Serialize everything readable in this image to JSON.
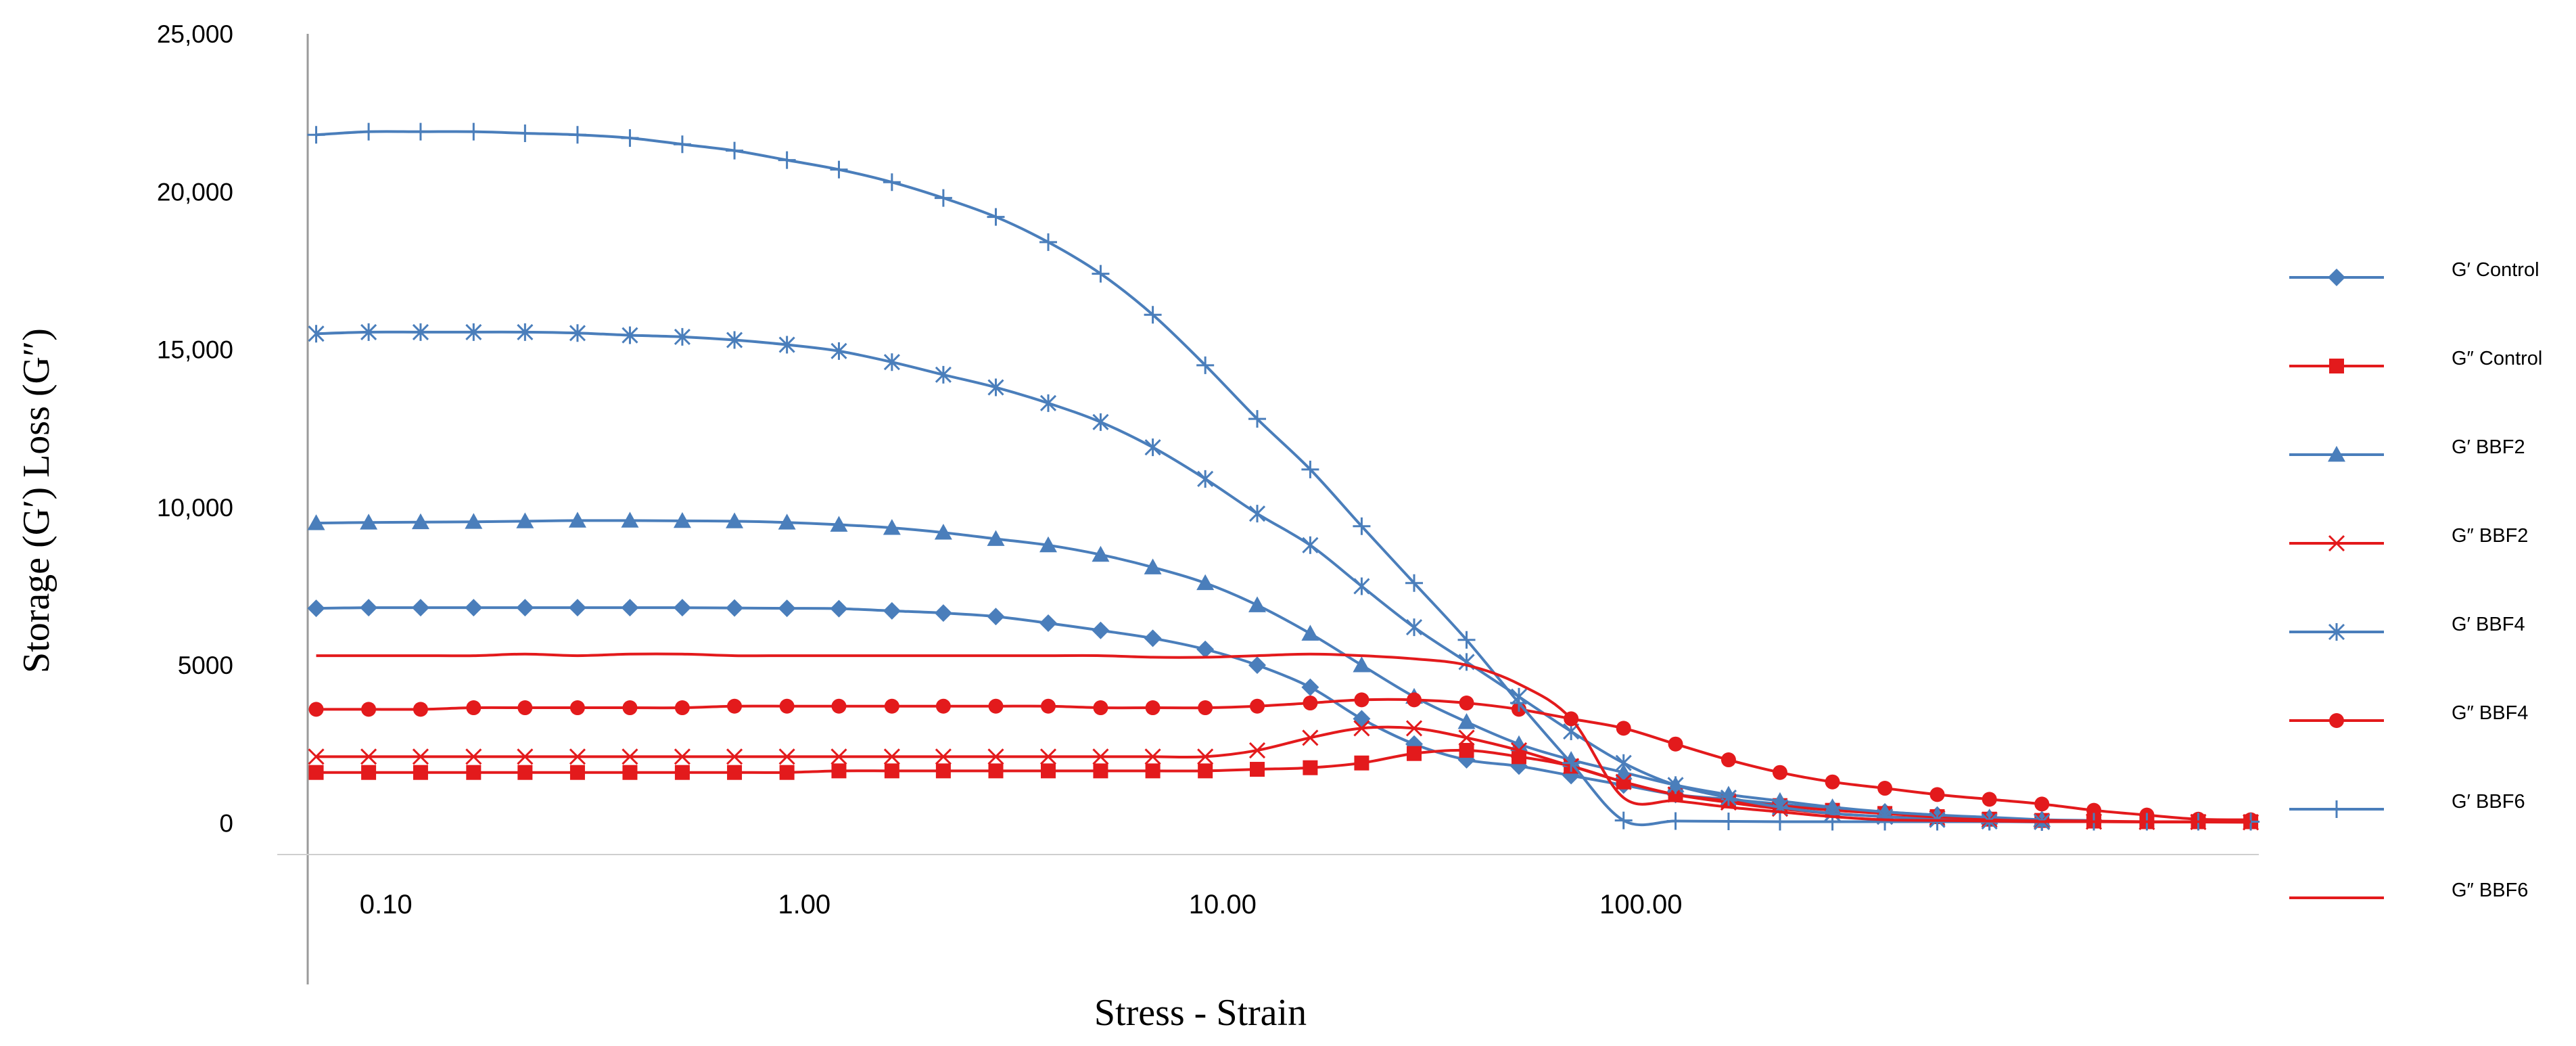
{
  "chart_data": {
    "type": "line",
    "title": "",
    "xlabel": "Stress - Strain",
    "ylabel": "Storage (G′) Loss (G″)",
    "x_scale": "log",
    "xlim": [
      0.065,
      3000
    ],
    "ylim": [
      -1000,
      25000
    ],
    "y_ticks": [
      {
        "value": 25000,
        "label": "25,000"
      },
      {
        "value": 20000,
        "label": "20,000"
      },
      {
        "value": 15000,
        "label": "15,000"
      },
      {
        "value": 10000,
        "label": "10,000"
      },
      {
        "value": 5000,
        "label": "5000"
      },
      {
        "value": 0,
        "label": "0"
      }
    ],
    "x_ticks": [
      {
        "value": 0.1,
        "label": "0.10"
      },
      {
        "value": 1,
        "label": "1.00"
      },
      {
        "value": 10,
        "label": "10.00"
      },
      {
        "value": 100,
        "label": "100.00"
      }
    ],
    "grid": false,
    "legend_position": "right",
    "x": [
      0.0681,
      0.0909,
      0.121,
      0.162,
      0.215,
      0.287,
      0.383,
      0.511,
      0.681,
      0.909,
      1.21,
      1.62,
      2.15,
      2.87,
      3.83,
      5.11,
      6.81,
      9.09,
      12.1,
      16.2,
      21.5,
      28.7,
      38.3,
      51.1,
      68.1,
      90.9,
      121,
      162,
      215,
      287,
      383,
      511,
      681,
      909,
      1210,
      1620,
      2150,
      2870
    ],
    "series": [
      {
        "name": "G′ Control",
        "color": "#4A7EBB",
        "marker": "diamond",
        "values": [
          6800,
          6820,
          6820,
          6820,
          6820,
          6820,
          6820,
          6820,
          6810,
          6800,
          6790,
          6720,
          6650,
          6540,
          6330,
          6100,
          5850,
          5500,
          5000,
          4300,
          3300,
          2500,
          2000,
          1800,
          1500,
          1200,
          900,
          750,
          600,
          450,
          350,
          250,
          150,
          100,
          80,
          null,
          null,
          null
        ]
      },
      {
        "name": "G″ Control",
        "color": "#E31A1C",
        "marker": "square",
        "values": [
          1600,
          1600,
          1600,
          1600,
          1600,
          1600,
          1600,
          1600,
          1600,
          1600,
          1650,
          1650,
          1650,
          1650,
          1650,
          1650,
          1650,
          1650,
          1700,
          1750,
          1900,
          2200,
          2300,
          2100,
          1800,
          1300,
          900,
          700,
          550,
          400,
          300,
          200,
          120,
          80,
          60,
          40,
          40,
          40
        ]
      },
      {
        "name": "G′ BBF2",
        "color": "#4A7EBB",
        "marker": "triangle",
        "values": [
          9500,
          9520,
          9530,
          9540,
          9560,
          9580,
          9580,
          9570,
          9560,
          9520,
          9450,
          9350,
          9200,
          9000,
          8800,
          8500,
          8100,
          7600,
          6900,
          6000,
          5000,
          4000,
          3200,
          2500,
          2000,
          1600,
          1200,
          900,
          700,
          500,
          350,
          250,
          180,
          100,
          null,
          null,
          null,
          null
        ]
      },
      {
        "name": "G″ BBF2",
        "color": "#E31A1C",
        "marker": "x",
        "values": [
          2100,
          2100,
          2100,
          2100,
          2100,
          2100,
          2100,
          2100,
          2100,
          2100,
          2100,
          2100,
          2100,
          2100,
          2100,
          2100,
          2100,
          2100,
          2300,
          2700,
          3000,
          3000,
          2700,
          2300,
          1800,
          1300,
          900,
          650,
          450,
          300,
          200,
          150,
          100,
          60,
          40,
          30,
          30,
          20
        ]
      },
      {
        "name": "G′ BBF4",
        "color": "#4A7EBB",
        "marker": "asterisk",
        "values": [
          15500,
          15550,
          15550,
          15550,
          15550,
          15520,
          15450,
          15400,
          15300,
          15150,
          14950,
          14600,
          14200,
          13800,
          13300,
          12700,
          11900,
          10900,
          9800,
          8800,
          7500,
          6200,
          5100,
          4000,
          2900,
          1900,
          1200,
          800,
          500,
          300,
          200,
          100,
          50,
          30,
          null,
          null,
          null,
          null
        ]
      },
      {
        "name": "G″ BBF4",
        "color": "#E31A1C",
        "marker": "circle",
        "values": [
          3600,
          3600,
          3600,
          3650,
          3650,
          3650,
          3650,
          3650,
          3700,
          3700,
          3700,
          3700,
          3700,
          3700,
          3700,
          3650,
          3650,
          3650,
          3700,
          3800,
          3900,
          3900,
          3800,
          3600,
          3300,
          3000,
          2500,
          2000,
          1600,
          1300,
          1100,
          900,
          750,
          600,
          400,
          250,
          120,
          100
        ]
      },
      {
        "name": "G′ BBF6",
        "color": "#4A7EBB",
        "marker": "plus",
        "values": [
          21800,
          21900,
          21900,
          21900,
          21850,
          21800,
          21700,
          21500,
          21300,
          21000,
          20700,
          20300,
          19800,
          19200,
          18400,
          17400,
          16100,
          14500,
          12800,
          11200,
          9400,
          7600,
          5800,
          3800,
          1900,
          80,
          60,
          50,
          40,
          40,
          40,
          40,
          40,
          40,
          40,
          40,
          40,
          40
        ]
      },
      {
        "name": "G″ BBF6",
        "color": "#E31A1C",
        "marker": "none",
        "values": [
          5300,
          5300,
          5300,
          5300,
          5350,
          5300,
          5350,
          5350,
          5300,
          5300,
          5300,
          5300,
          5300,
          5300,
          5300,
          5300,
          5250,
          5250,
          5300,
          5350,
          5300,
          5200,
          5000,
          4400,
          3300,
          800,
          700,
          500,
          350,
          200,
          100,
          80,
          60,
          40,
          40,
          40,
          40,
          40
        ]
      }
    ]
  }
}
